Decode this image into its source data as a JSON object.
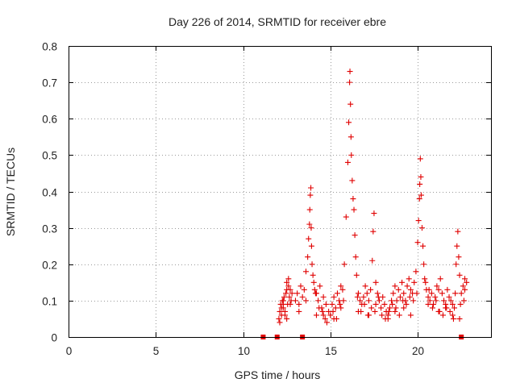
{
  "chart_data": {
    "type": "scatter",
    "title": "Day 226 of 2014, SRMTID for receiver ebre",
    "xlabel": "GPS time / hours",
    "ylabel": "SRMTID / TECUs",
    "xlim": [
      0,
      24.2
    ],
    "ylim": [
      0,
      0.8
    ],
    "xticks": [
      0,
      5,
      10,
      15,
      20
    ],
    "yticks": [
      0,
      0.1,
      0.2,
      0.3,
      0.4,
      0.5,
      0.6,
      0.7,
      0.8
    ],
    "xtick_labels": [
      "0",
      "5",
      "10",
      "15",
      "20"
    ],
    "ytick_labels": [
      "0",
      "0.1",
      "0.2",
      "0.3",
      "0.4",
      "0.5",
      "0.6",
      "0.7",
      "0.8"
    ],
    "grid": true,
    "marker": "+",
    "color": "#e00000",
    "zero_markers_x": [
      11.15,
      11.95,
      13.4,
      22.5
    ],
    "series": [
      {
        "name": "SRMTID",
        "x": [
          12.05,
          12.1,
          12.15,
          12.2,
          12.25,
          12.3,
          12.35,
          12.4,
          12.45,
          12.5,
          12.55,
          12.6,
          12.65,
          12.7,
          12.75,
          12.8,
          12.1,
          12.2,
          12.3,
          12.4,
          12.5,
          12.6,
          12.7,
          13.0,
          13.1,
          13.2,
          13.3,
          13.4,
          13.5,
          13.6,
          13.7,
          13.75,
          13.8,
          13.82,
          13.85,
          13.88,
          13.9,
          13.92,
          13.95,
          14.0,
          14.05,
          14.1,
          14.2,
          14.3,
          14.4,
          14.5,
          14.6,
          14.7,
          14.8,
          14.9,
          15.0,
          15.1,
          15.2,
          15.3,
          15.4,
          15.5,
          15.6,
          15.7,
          15.8,
          15.9,
          16.0,
          16.05,
          16.1,
          16.12,
          16.15,
          16.18,
          16.2,
          16.25,
          16.3,
          16.35,
          16.4,
          16.45,
          16.5,
          16.6,
          16.7,
          16.8,
          16.9,
          17.0,
          17.1,
          17.2,
          17.3,
          17.4,
          17.45,
          17.5,
          17.6,
          17.7,
          17.8,
          17.9,
          18.0,
          18.1,
          18.2,
          18.3,
          18.4,
          18.5,
          18.6,
          18.7,
          18.8,
          18.9,
          19.0,
          19.1,
          19.2,
          19.3,
          19.4,
          19.5,
          19.6,
          19.7,
          19.8,
          19.9,
          20.0,
          20.05,
          20.1,
          20.12,
          20.15,
          20.18,
          20.2,
          20.25,
          20.3,
          20.35,
          20.4,
          20.5,
          20.6,
          20.7,
          20.8,
          20.9,
          21.0,
          21.1,
          21.2,
          21.3,
          21.4,
          21.5,
          21.6,
          21.7,
          21.8,
          21.9,
          22.0,
          22.1,
          22.15,
          22.2,
          22.25,
          22.3,
          22.35,
          22.4,
          22.5,
          22.6,
          22.7,
          22.8,
          12.3,
          12.5,
          13.2,
          13.6,
          14.2,
          14.6,
          15.2,
          15.6,
          16.6,
          17.2,
          17.6,
          18.3,
          18.7,
          19.2,
          19.6,
          20.6,
          21.2,
          21.6,
          22.0,
          22.4,
          22.7,
          14.15,
          14.35,
          14.55,
          14.75,
          15.15,
          15.35,
          15.55,
          15.75,
          16.55,
          16.75,
          16.95,
          17.15,
          17.35,
          17.55,
          17.75,
          17.95,
          18.15,
          18.35,
          18.55,
          18.75,
          18.95,
          19.15,
          19.35,
          19.55,
          19.75,
          19.95,
          20.45,
          20.65,
          20.85,
          21.05,
          21.25,
          21.45,
          21.65,
          21.85,
          22.05,
          22.45,
          22.65
        ],
        "y": [
          0.05,
          0.07,
          0.09,
          0.06,
          0.1,
          0.08,
          0.11,
          0.07,
          0.12,
          0.15,
          0.09,
          0.14,
          0.11,
          0.13,
          0.1,
          0.12,
          0.04,
          0.08,
          0.1,
          0.06,
          0.13,
          0.16,
          0.09,
          0.1,
          0.12,
          0.09,
          0.14,
          0.11,
          0.13,
          0.18,
          0.22,
          0.27,
          0.31,
          0.35,
          0.39,
          0.41,
          0.3,
          0.25,
          0.2,
          0.17,
          0.15,
          0.13,
          0.12,
          0.1,
          0.14,
          0.08,
          0.06,
          0.05,
          0.04,
          0.07,
          0.06,
          0.09,
          0.11,
          0.08,
          0.12,
          0.1,
          0.14,
          0.13,
          0.2,
          0.33,
          0.48,
          0.59,
          0.7,
          0.73,
          0.64,
          0.55,
          0.5,
          0.43,
          0.38,
          0.35,
          0.28,
          0.22,
          0.17,
          0.12,
          0.1,
          0.09,
          0.11,
          0.14,
          0.12,
          0.1,
          0.13,
          0.21,
          0.29,
          0.34,
          0.15,
          0.12,
          0.1,
          0.08,
          0.11,
          0.09,
          0.07,
          0.06,
          0.08,
          0.1,
          0.12,
          0.14,
          0.1,
          0.13,
          0.11,
          0.15,
          0.12,
          0.1,
          0.14,
          0.16,
          0.13,
          0.12,
          0.15,
          0.18,
          0.26,
          0.32,
          0.38,
          0.42,
          0.49,
          0.44,
          0.39,
          0.3,
          0.25,
          0.2,
          0.16,
          0.13,
          0.11,
          0.1,
          0.12,
          0.09,
          0.11,
          0.14,
          0.13,
          0.16,
          0.12,
          0.1,
          0.09,
          0.13,
          0.11,
          0.1,
          0.09,
          0.08,
          0.12,
          0.2,
          0.25,
          0.29,
          0.22,
          0.17,
          0.12,
          0.14,
          0.16,
          0.15,
          0.09,
          0.05,
          0.07,
          0.1,
          0.06,
          0.11,
          0.05,
          0.08,
          0.07,
          0.06,
          0.09,
          0.05,
          0.07,
          0.08,
          0.06,
          0.09,
          0.07,
          0.08,
          0.06,
          0.05,
          0.13,
          0.12,
          0.08,
          0.07,
          0.09,
          0.07,
          0.05,
          0.09,
          0.1,
          0.11,
          0.07,
          0.09,
          0.06,
          0.08,
          0.07,
          0.11,
          0.06,
          0.05,
          0.07,
          0.09,
          0.08,
          0.06,
          0.1,
          0.09,
          0.11,
          0.1,
          0.12,
          0.15,
          0.13,
          0.08,
          0.1,
          0.07,
          0.06,
          0.08,
          0.07,
          0.05,
          0.09,
          0.1
        ]
      }
    ]
  }
}
